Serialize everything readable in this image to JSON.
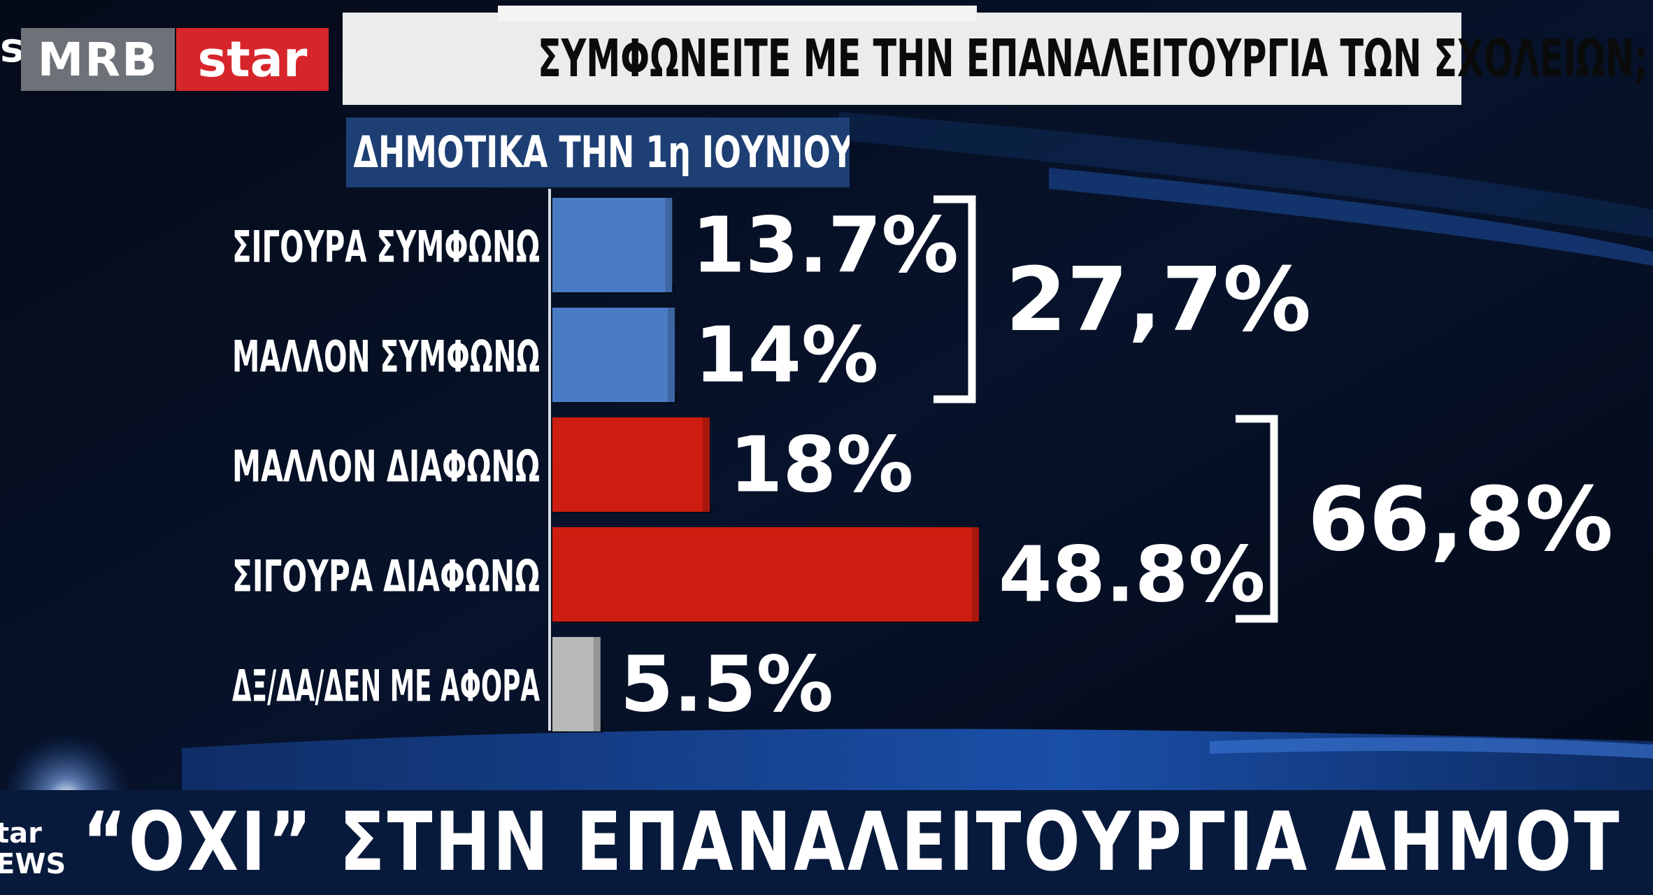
{
  "branding": {
    "corner_text": "s",
    "logo_mrb": "MRB",
    "logo_star": "star",
    "ticker_logo_line1": "tar",
    "ticker_logo_line2": "EWS"
  },
  "question_banner": "ΣΥΜΦΩΝΕΙΤΕ ΜΕ ΤΗΝ ΕΠΑΝΑΛΕΙΤΟΥΡΓΙΑ ΤΩΝ ΣΧΟΛΕΙΩΝ;",
  "subtitle": "ΔΗΜΟΤΙΚΑ ΤΗΝ 1η ΙΟΥΝΙΟΥ",
  "ticker": "“ΟΧΙ” ΣΤΗΝ ΕΠΑΝΑΛΕΙΤΟΥΡΓΙΑ ΔΗΜΟΤΙΚΩΝ",
  "top_overlay_text": "",
  "colors": {
    "agree": "#4a7cc6",
    "disagree": "#cc1d10",
    "neutral": "#b8b8b8",
    "text": "#ffffff"
  },
  "chart_data": {
    "type": "bar",
    "orientation": "horizontal",
    "title": "ΣΥΜΦΩΝΕΙΤΕ ΜΕ ΤΗΝ ΕΠΑΝΑΛΕΙΤΟΥΡΓΙΑ ΤΩΝ ΣΧΟΛΕΙΩΝ;",
    "subtitle": "ΔΗΜΟΤΙΚΑ ΤΗΝ 1η ΙΟΥΝΙΟΥ",
    "categories": [
      "ΣΙΓΟΥΡΑ ΣΥΜΦΩΝΩ",
      "ΜΑΛΛΟΝ ΣΥΜΦΩΝΩ",
      "ΜΑΛΛΟΝ ΔΙΑΦΩΝΩ",
      "ΣΙΓΟΥΡΑ ΔΙΑΦΩΝΩ",
      "ΔΞ/ΔΑ/ΔΕΝ ΜΕ ΑΦΟΡΑ"
    ],
    "values": [
      13.7,
      14,
      18,
      48.8,
      5.5
    ],
    "value_labels": [
      "13.7%",
      "14%",
      "18%",
      "48.8%",
      "5.5%"
    ],
    "bar_colors": [
      "#4a7cc6",
      "#4a7cc6",
      "#cc1d10",
      "#cc1d10",
      "#b8b8b8"
    ],
    "groups": [
      {
        "label": "27,7%",
        "value": 27.7,
        "rows": [
          0,
          1
        ]
      },
      {
        "label": "66,8%",
        "value": 66.8,
        "rows": [
          2,
          3
        ]
      }
    ],
    "xlim": [
      0,
      48.8
    ],
    "grid": false,
    "legend": "none"
  }
}
